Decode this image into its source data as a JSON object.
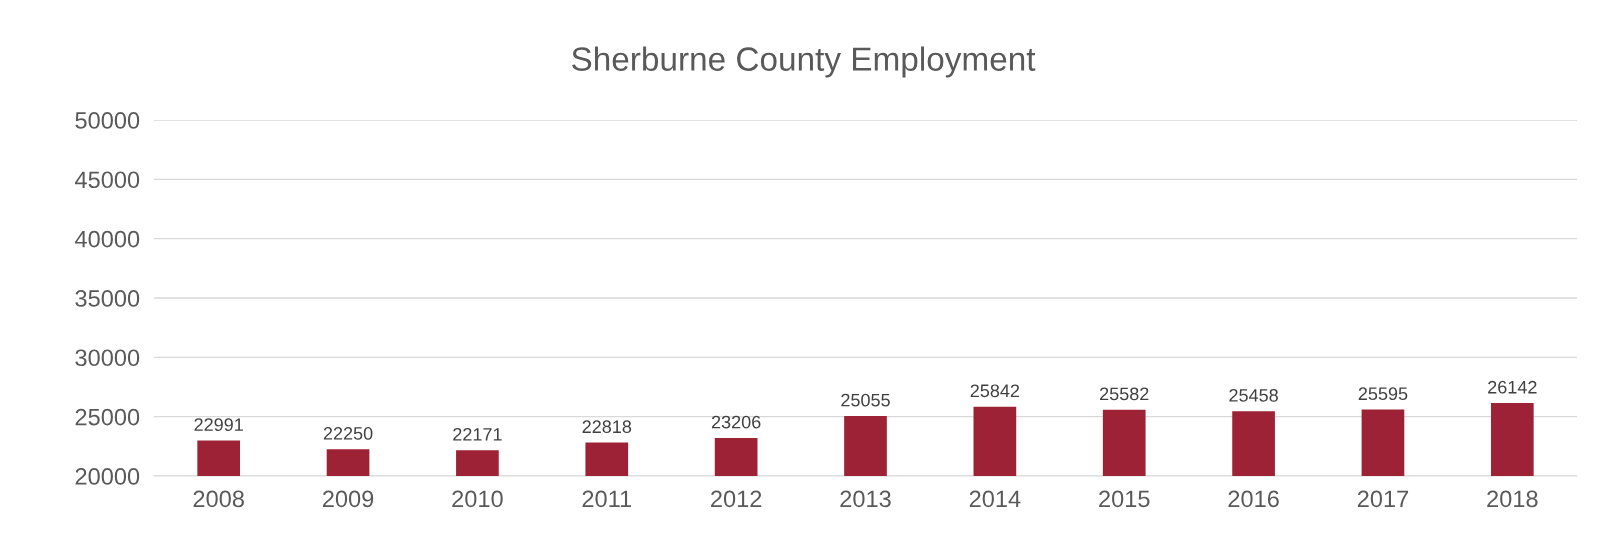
{
  "chart_data": {
    "type": "bar",
    "title": "Sherburne County Employment",
    "categories": [
      "2008",
      "2009",
      "2010",
      "2011",
      "2012",
      "2013",
      "2014",
      "2015",
      "2016",
      "2017",
      "2018"
    ],
    "values": [
      22991,
      22250,
      22171,
      22818,
      23206,
      25055,
      25842,
      25582,
      25458,
      25595,
      26142
    ],
    "color": "#9e2235",
    "ylim": [
      20000,
      50000
    ],
    "yticks": [
      20000,
      25000,
      30000,
      35000,
      40000,
      45000,
      50000
    ],
    "grid": "y",
    "data_labels": true,
    "legend": false
  }
}
